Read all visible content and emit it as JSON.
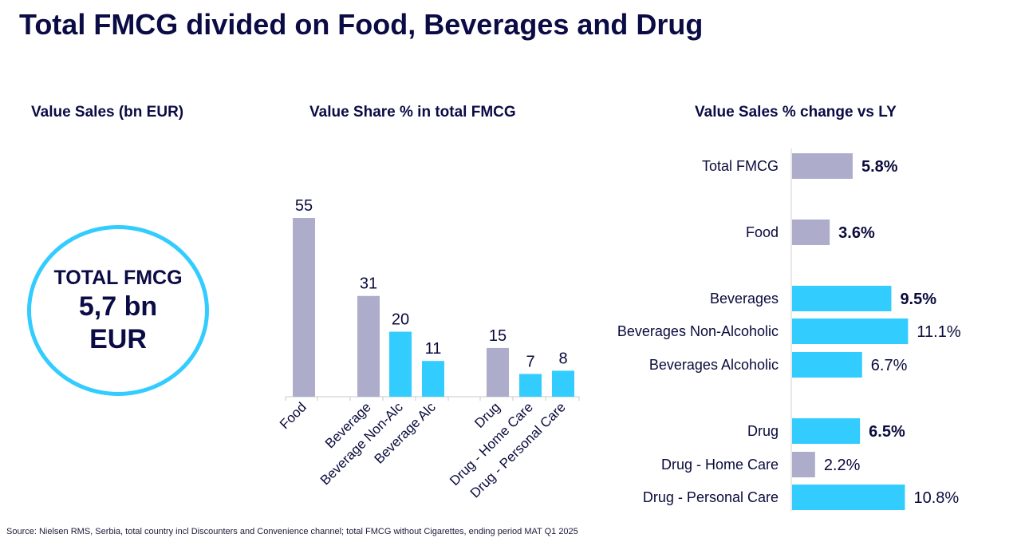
{
  "title": "Total FMCG divided on Food, Beverages and Drug",
  "sections": {
    "value_sales": "Value Sales (bn EUR)",
    "value_share": "Value Share % in total FMCG",
    "change": "Value Sales % change vs LY"
  },
  "total": {
    "label": "TOTAL FMCG",
    "value": "5,7 bn",
    "unit": "EUR"
  },
  "source": "Source: Nielsen RMS, Serbia, total country incl Discounters and Convenience channel; total FMCG without Cigarettes, ending period MAT Q1 2025",
  "colors": {
    "grey": "#adadcb",
    "cyan": "#33ccff",
    "navy": "#0b0b45"
  },
  "chart_data": [
    {
      "type": "bar",
      "title": "Value Share % in total FMCG",
      "categories": [
        "Food",
        "Beverage",
        "Beverage Non-Alc",
        "Beverage Alc",
        "Drug",
        "Drug - Home Care",
        "Drug - Personal Care"
      ],
      "values": [
        55,
        31,
        20,
        11,
        15,
        7,
        8
      ],
      "colors": [
        "grey",
        "grey",
        "cyan",
        "cyan",
        "grey",
        "cyan",
        "cyan"
      ],
      "data_labels": [
        "55",
        "31",
        "20",
        "11",
        "15",
        "7",
        "8"
      ],
      "ylim": [
        0,
        55
      ]
    },
    {
      "type": "bar",
      "orientation": "horizontal",
      "title": "Value Sales % change vs LY",
      "categories": [
        "Total FMCG",
        "Food",
        "Beverages",
        "Beverages Non-Alcoholic",
        "Beverages Alcoholic",
        "Drug",
        "Drug - Home Care",
        "Drug - Personal Care"
      ],
      "values": [
        5.8,
        3.6,
        9.5,
        11.1,
        6.7,
        6.5,
        2.2,
        10.8
      ],
      "data_labels": [
        "5.8%",
        "3.6%",
        "9.5%",
        "11.1%",
        "6.7%",
        "6.5%",
        "2.2%",
        "10.8%"
      ],
      "bold": [
        true,
        true,
        true,
        false,
        false,
        true,
        false,
        false
      ],
      "colors": [
        "grey",
        "grey",
        "cyan",
        "cyan",
        "cyan",
        "cyan",
        "grey",
        "cyan"
      ]
    }
  ]
}
